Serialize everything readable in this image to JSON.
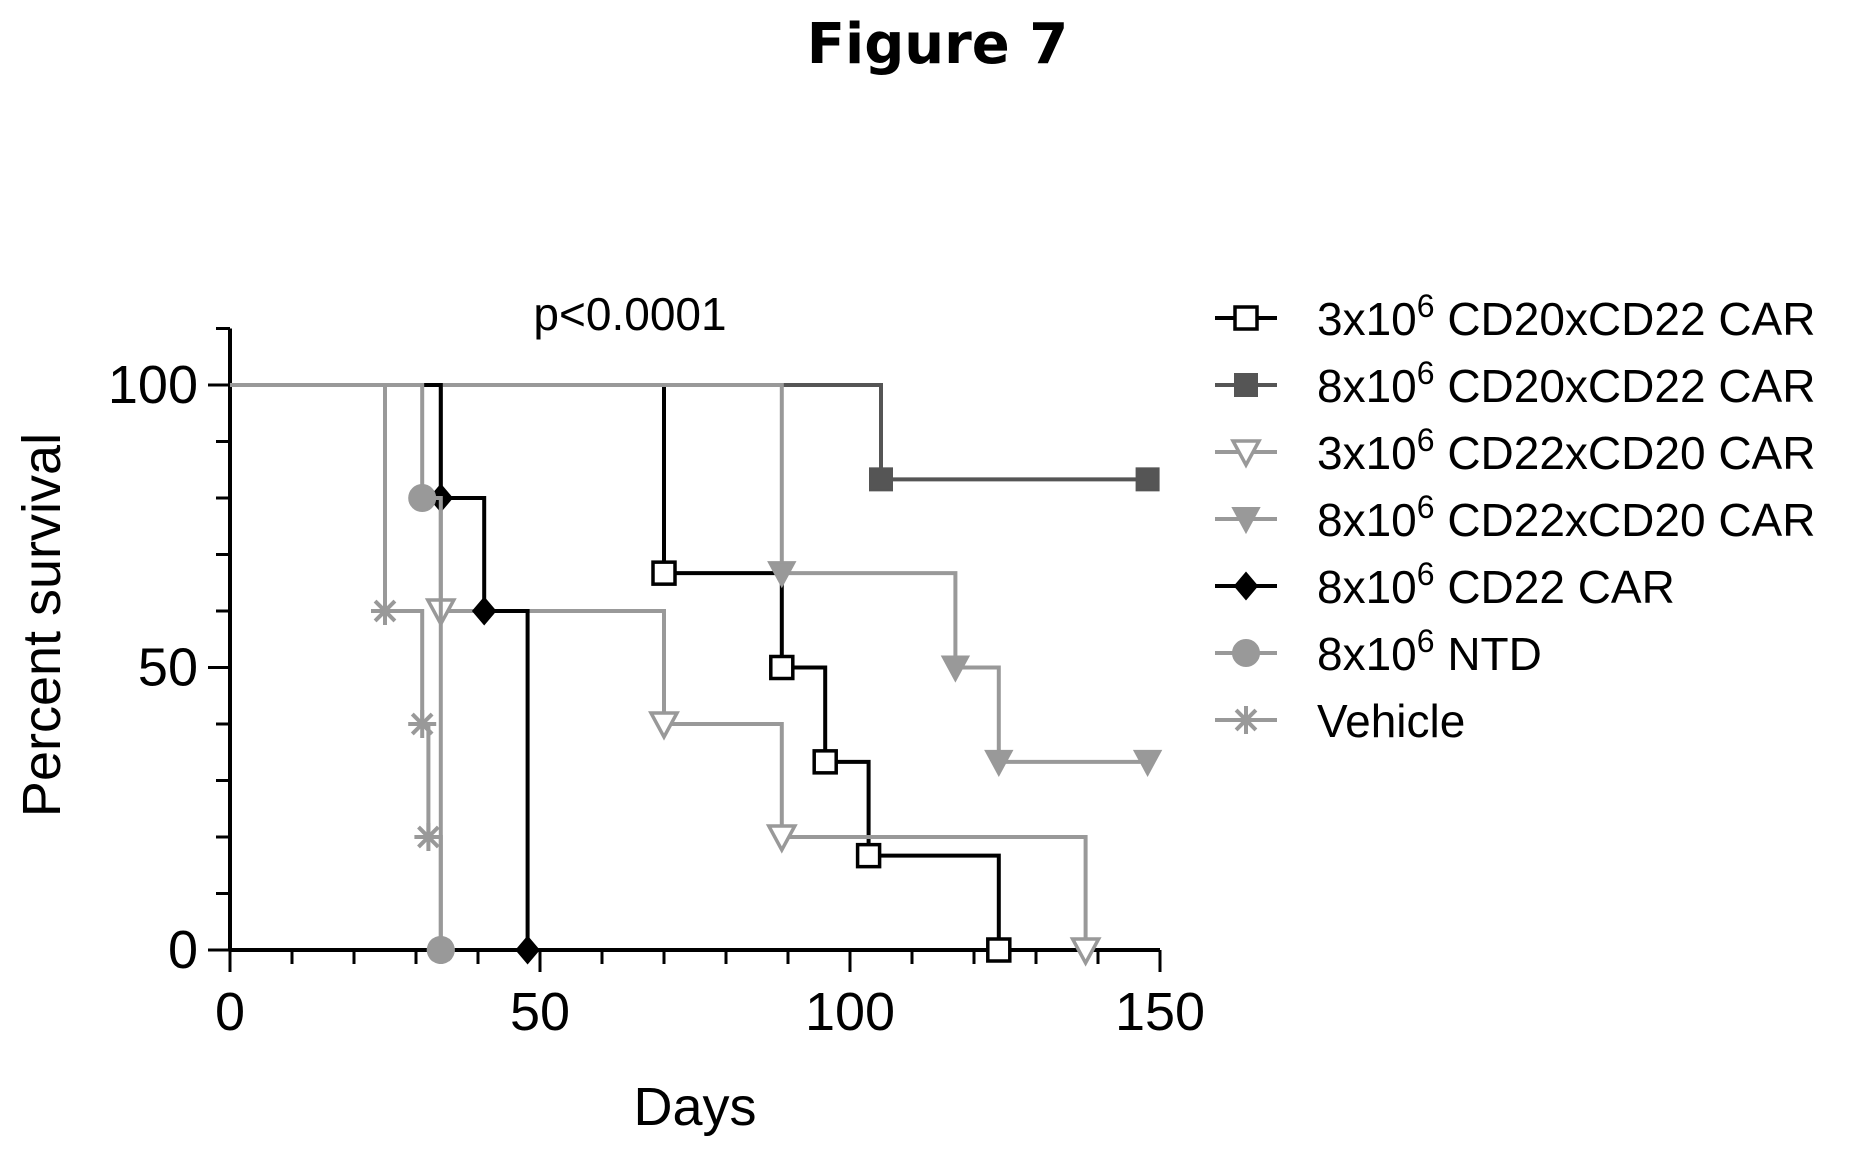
{
  "figure_title": "Figure 7",
  "chart_data": {
    "type": "line",
    "subtype": "kaplan-meier survival",
    "title": "",
    "xlabel": "Days",
    "ylabel": "Percent survival",
    "xlim": [
      0,
      150
    ],
    "ylim": [
      0,
      110
    ],
    "xticks": [
      0,
      50,
      100,
      150
    ],
    "yticks": [
      0,
      50,
      100
    ],
    "annotation": "p<0.0001",
    "grid": false,
    "legend_position": "right",
    "series": [
      {
        "name": "3x10^6 CD20xCD22 CAR",
        "label_base": "3x10",
        "label_exp": "6",
        "label_rest": " CD20xCD22 CAR",
        "color": "#000000",
        "marker": "open-square",
        "steps": [
          [
            0,
            100
          ],
          [
            70,
            66.7
          ],
          [
            89,
            50
          ],
          [
            96,
            33.3
          ],
          [
            103,
            16.7
          ],
          [
            124,
            0
          ]
        ],
        "end_x": 124
      },
      {
        "name": "8x10^6 CD20xCD22 CAR",
        "label_base": "8x10",
        "label_exp": "6",
        "label_rest": " CD20xCD22 CAR",
        "color": "#555555",
        "marker": "filled-square",
        "steps": [
          [
            0,
            100
          ],
          [
            105,
            83.3
          ]
        ],
        "end_x": 148
      },
      {
        "name": "3x10^6 CD22xCD20 CAR",
        "label_base": "3x10",
        "label_exp": "6",
        "label_rest": " CD22xCD20 CAR",
        "color": "#999999",
        "marker": "open-triangle-down",
        "steps": [
          [
            0,
            100
          ],
          [
            34,
            60
          ],
          [
            70,
            40
          ],
          [
            89,
            20
          ],
          [
            138,
            0
          ]
        ],
        "end_x": 138
      },
      {
        "name": "8x10^6 CD22xCD20 CAR",
        "label_base": "8x10",
        "label_exp": "6",
        "label_rest": " CD22xCD20 CAR",
        "color": "#999999",
        "marker": "filled-triangle-down",
        "steps": [
          [
            0,
            100
          ],
          [
            89,
            66.7
          ],
          [
            117,
            50
          ],
          [
            124,
            33.3
          ]
        ],
        "end_x": 148
      },
      {
        "name": "8x10^6 CD22 CAR",
        "label_base": "8x10",
        "label_exp": "6",
        "label_rest": " CD22 CAR",
        "color": "#000000",
        "marker": "filled-diamond",
        "steps": [
          [
            0,
            100
          ],
          [
            34,
            80
          ],
          [
            41,
            60
          ],
          [
            48,
            0
          ]
        ],
        "end_x": 48
      },
      {
        "name": "8x10^6 NTD",
        "label_base": "8x10",
        "label_exp": "6",
        "label_rest": " NTD",
        "color": "#999999",
        "marker": "filled-circle",
        "steps": [
          [
            0,
            100
          ],
          [
            31,
            80
          ],
          [
            34,
            0
          ]
        ],
        "end_x": 34
      },
      {
        "name": "Vehicle",
        "label_base": "Vehicle",
        "label_exp": "",
        "label_rest": "",
        "color": "#999999",
        "marker": "asterisk",
        "steps": [
          [
            0,
            100
          ],
          [
            25,
            60
          ],
          [
            31,
            40
          ],
          [
            32,
            20
          ],
          [
            34,
            0
          ]
        ],
        "end_x": 34
      }
    ]
  }
}
